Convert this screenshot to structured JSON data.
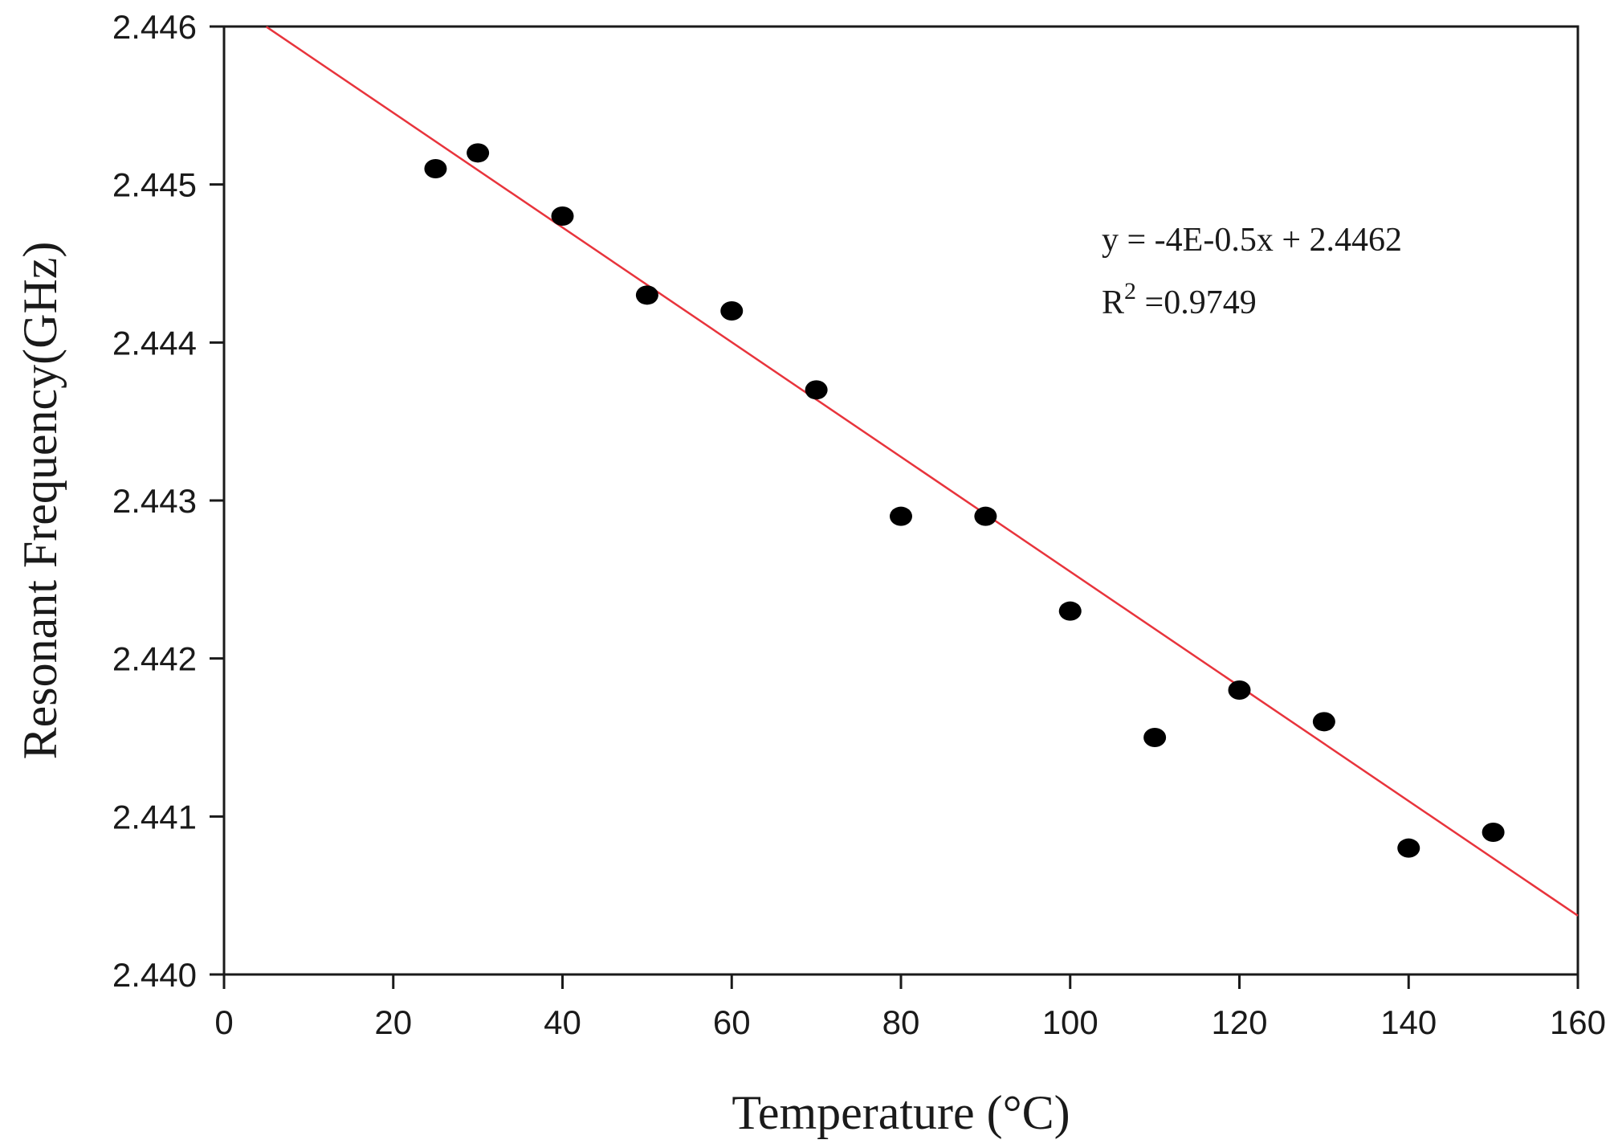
{
  "chart_data": {
    "type": "scatter",
    "xlabel": "Temperature (°C)",
    "ylabel": "Resonant Frequency(GHz)",
    "xlim": [
      0,
      160
    ],
    "ylim": [
      2.44,
      2.446
    ],
    "x_ticks": [
      "0",
      "20",
      "40",
      "60",
      "80",
      "100",
      "120",
      "140",
      "160"
    ],
    "y_ticks": [
      "2.440",
      "2.441",
      "2.442",
      "2.443",
      "2.444",
      "2.445",
      "2.446"
    ],
    "grid": false,
    "series": [
      {
        "x": [
          25,
          30,
          40,
          50,
          60,
          70,
          80,
          90,
          100,
          110,
          120,
          130,
          140,
          150
        ],
        "y": [
          2.4451,
          2.4452,
          2.4448,
          2.4443,
          2.4442,
          2.4437,
          2.4429,
          2.4429,
          2.4423,
          2.4415,
          2.4418,
          2.4416,
          2.4408,
          2.4409
        ],
        "color": "#000000"
      }
    ],
    "trendline": {
      "slope": -3.63e-05,
      "intercept": 2.44618,
      "x_range": [
        5,
        160
      ],
      "color": "#e8343c"
    },
    "annotation": {
      "equation": "y = -4E-0.5x + 2.4462",
      "r2_prefix": "R",
      "r2_sup": "2",
      "r2_value": " =0.9749"
    }
  }
}
